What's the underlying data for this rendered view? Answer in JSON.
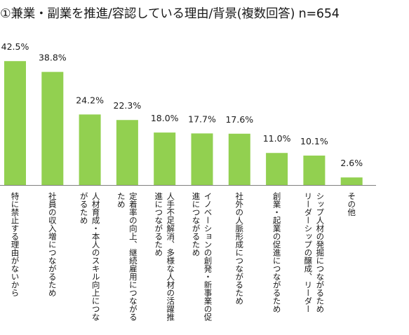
{
  "title": "①兼業・副業を推進/容認している理由/背景(複数回答) n=654",
  "colors": {
    "bar": "#92d050",
    "axis": "#7f7f7f",
    "text": "#1a1a1a"
  },
  "chart_data": {
    "type": "bar",
    "title": "①兼業・副業を推進/容認している理由/背景(複数回答) n=654",
    "categories": [
      [
        "特に禁止する理由がないから"
      ],
      [
        "社員の収入増につながるため"
      ],
      [
        "人材育成・本人のスキル向上につな",
        "がるため"
      ],
      [
        "定着率の向上、継続雇用につながる",
        "ため"
      ],
      [
        "人手不足解消、多様な人材の活躍推",
        "進につながるため"
      ],
      [
        "イノベーションの創発・新事業の促",
        "進につながるため"
      ],
      [
        "社外の人脈形成につながるため"
      ],
      [
        "創業・起業の促進につながるため"
      ],
      [
        "シップ人材の発掘につながるため",
        "リーダーシップの醸成、リーダー"
      ],
      [
        "その他"
      ]
    ],
    "values": [
      42.5,
      38.8,
      24.2,
      22.3,
      18.0,
      17.7,
      17.6,
      11.0,
      10.1,
      2.6
    ],
    "value_labels": [
      "42.5%",
      "38.8%",
      "24.2%",
      "22.3%",
      "18.0%",
      "17.7%",
      "17.6%",
      "11.0%",
      "10.1%",
      "2.6%"
    ],
    "ylim": [
      0,
      45
    ],
    "grid": false,
    "legend": "none"
  }
}
